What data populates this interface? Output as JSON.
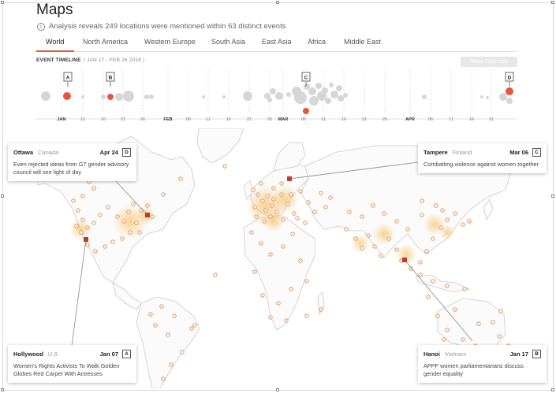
{
  "page": {
    "title": "Maps",
    "info_icon": "info-icon",
    "subtitle": "Analysis reveals 249 locations were mentioned within 63 distinct events"
  },
  "tabs": [
    {
      "label": "World",
      "active": true
    },
    {
      "label": "North America"
    },
    {
      "label": "Western Europe"
    },
    {
      "label": "South Asia"
    },
    {
      "label": "East Asia"
    },
    {
      "label": "Africa"
    },
    {
      "label": "Middle East"
    }
  ],
  "timeline": {
    "title": "EVENT TIMELINE",
    "range": "( JAN 17 - FEB 26 2018 )",
    "show_overview_label": "Show Overview",
    "tick_labels": [
      "JAN",
      "11",
      "16",
      "21",
      "26",
      "FEB",
      "06",
      "11",
      "16",
      "21",
      "26",
      "MAR",
      "06",
      "11",
      "16",
      "21",
      "26",
      "APR",
      "06",
      "11",
      "16",
      "21"
    ],
    "markers": [
      "A",
      "B",
      "C",
      "D"
    ]
  },
  "cards": [
    {
      "city": "Ottawa",
      "country": "Canada",
      "date": "Apr 24",
      "badge": "D",
      "text": "Even rejected ideas from G7 gender advisory council will see light of day"
    },
    {
      "city": "Tampere",
      "country": "Finland",
      "date": "Mar 06",
      "badge": "C",
      "text": "Combatting violence against women together"
    },
    {
      "city": "Hollywood",
      "country": "U.S",
      "date": "Jan 07",
      "badge": "A",
      "text": "Women's Rights Activists To Walk Golden Globes Red Carpet With Actresses"
    },
    {
      "city": "Hanoi",
      "country": "Vietnam",
      "date": "Jan 17",
      "badge": "B",
      "text": "APPF women parliamentarians discuss gender equality"
    }
  ],
  "colors": {
    "accent": "#e8553b",
    "bubble": "#d6d6d6",
    "heat": "#f5b041",
    "land_stroke": "#c9c9c9"
  }
}
